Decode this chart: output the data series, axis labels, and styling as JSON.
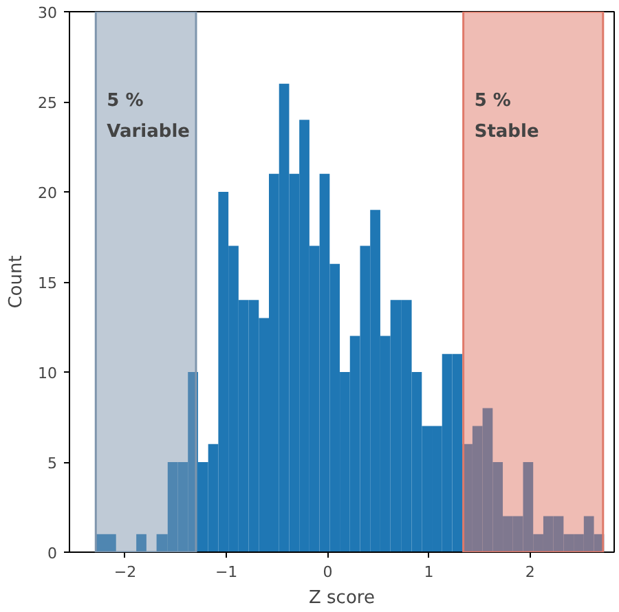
{
  "chart_data": {
    "type": "histogram",
    "xlabel": "Z score",
    "ylabel": "Count",
    "bins": [
      -2.29,
      -2.19,
      -2.09,
      -1.89,
      -1.79,
      -1.69,
      -1.58,
      -1.48,
      -1.38,
      -1.28,
      -1.18,
      -1.08,
      -0.98,
      -0.88,
      -0.78,
      -0.68,
      -0.58,
      -0.48,
      -0.38,
      -0.28,
      -0.18,
      -0.08,
      0.02,
      0.12,
      0.22,
      0.32,
      0.42,
      0.52,
      0.62,
      0.73,
      0.83,
      0.93,
      1.03,
      1.13,
      1.23,
      1.33,
      1.43,
      1.53,
      1.63,
      1.73,
      1.83,
      1.93,
      2.03,
      2.13,
      2.23,
      2.33,
      2.43,
      2.53,
      2.63,
      2.73
    ],
    "values": [
      1,
      1,
      0,
      1,
      0,
      1,
      5,
      5,
      10,
      5,
      6,
      20,
      17,
      14,
      14,
      13,
      21,
      26,
      21,
      24,
      17,
      21,
      16,
      10,
      12,
      17,
      19,
      12,
      14,
      14,
      10,
      7,
      7,
      11,
      11,
      6,
      7,
      8,
      5,
      2,
      2,
      5,
      1,
      2,
      2,
      1,
      1,
      2,
      1
    ],
    "color": "#1f77b4",
    "xlim": [
      -2.55,
      2.83
    ],
    "ylim": [
      0,
      30
    ],
    "xticks": [
      {
        "value": -2,
        "label": "−2"
      },
      {
        "value": -1,
        "label": "−1"
      },
      0,
      1,
      2
    ],
    "yticks": [
      0,
      5,
      10,
      15,
      20,
      25,
      30
    ],
    "grid": false,
    "bands": [
      {
        "axis": "x",
        "from": -2.29,
        "to": -1.3,
        "label": "5 %\nVariable",
        "color": "#7f96ad"
      },
      {
        "axis": "x",
        "from": 1.34,
        "to": 2.72,
        "label": "5 %\nStable",
        "color": "#df7969"
      }
    ]
  }
}
